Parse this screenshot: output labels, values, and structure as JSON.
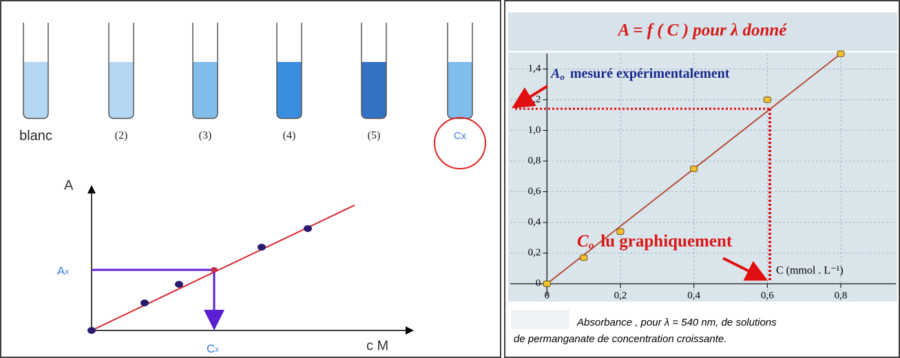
{
  "tubes": [
    {
      "label": "blanc",
      "color": "#b6d7f3"
    },
    {
      "label": "(2)",
      "color": "#b6d7f3"
    },
    {
      "label": "(3)",
      "color": "#80bdea"
    },
    {
      "label": "(4)",
      "color": "#3b8de0"
    },
    {
      "label": "(5)",
      "color": "#3372c2"
    },
    {
      "label": "Cx",
      "color": "#80bdea"
    }
  ],
  "sketch": {
    "y_label": "A",
    "x_label": "c M",
    "ax_label": {
      "main": "A",
      "sub": "x"
    },
    "cx_label": {
      "main": "C",
      "sub": "x"
    }
  },
  "chart_data": {
    "type": "scatter",
    "title": "A = f ( C ) pour λ donné",
    "x": [
      0,
      0.1,
      0.2,
      0.4,
      0.6,
      0.8
    ],
    "values": [
      0,
      0.17,
      0.34,
      0.75,
      1.2,
      1.5
    ],
    "color": "#f2c230",
    "line_color": "#b4503c",
    "xlim": [
      -0.1,
      0.95
    ],
    "ylim": [
      -0.08,
      1.5
    ],
    "xticks": [
      0,
      {
        "value": 0.2,
        "label": "0,2"
      },
      {
        "value": 0.4,
        "label": "0,4"
      },
      {
        "value": 0.6,
        "label": "0,6"
      },
      {
        "value": 0.8,
        "label": "0,8"
      }
    ],
    "yticks": [
      0,
      {
        "value": 0.2,
        "label": "0,2"
      },
      {
        "value": 0.4,
        "label": "0,4"
      },
      {
        "value": 0.6,
        "label": "0,6"
      },
      {
        "value": 0.8,
        "label": "0,8"
      },
      {
        "value": 1.0,
        "label": "1,0"
      },
      {
        "value": 1.2,
        "label": "1,2"
      },
      {
        "value": 1.4,
        "label": "1,4"
      }
    ],
    "grid": true,
    "x_label": "C (mmol . L⁻¹)",
    "annotation_a": {
      "symbol": "A",
      "sub": "o",
      "text": "mesuré expérimentalement"
    },
    "annotation_c": {
      "symbol": "C",
      "sub": "o",
      "text": "lu graphiquement"
    },
    "caption": [
      "Absorbance , pour λ = 540 nm, de solutions",
      "de permanganate de concentration croissante."
    ]
  }
}
